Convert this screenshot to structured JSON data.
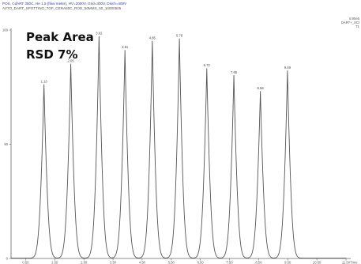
{
  "header": {
    "line1": "POS, CdART 350C, He 1.5 (flow meter), HV=2000V, Grid=300V, Disch=400V",
    "line2": "AVTO_DART_SPOTTING_TOF_CERAMIC_ROD_50MMS_50_10000505"
  },
  "right_info": {
    "line1": "8.90e5",
    "line2": "DART+_SCI",
    "line3": "T1"
  },
  "annotations": {
    "peak_area": "Peak Area",
    "rsd": "RSD 7%"
  },
  "chart_data": {
    "type": "line",
    "title": "",
    "xlabel": "",
    "ylabel": "",
    "xlim": [
      0.0,
      11.5
    ],
    "ylim": [
      0,
      100
    ],
    "x_ticks": [
      "0.50",
      "1.50",
      "2.50",
      "3.50",
      "4.50",
      "5.50",
      "6.50",
      "7.50",
      "8.50",
      "9.50",
      "10.50",
      "11.50"
    ],
    "y_ticks": [
      "0",
      "50",
      "100"
    ],
    "x_axis_end_label": "Time",
    "grid": false,
    "legend": "none",
    "line_color": "#555555",
    "peaks": [
      {
        "x": 1.13,
        "y": 76,
        "label": "1.13"
      },
      {
        "x": 2.05,
        "y": 85,
        "label": "2.05"
      },
      {
        "x": 3.02,
        "y": 97,
        "label": "3.02"
      },
      {
        "x": 3.91,
        "y": 91,
        "label": "3.91"
      },
      {
        "x": 4.85,
        "y": 95,
        "label": "4.85"
      },
      {
        "x": 5.78,
        "y": 96,
        "label": "5.78"
      },
      {
        "x": 6.72,
        "y": 83,
        "label": "6.72"
      },
      {
        "x": 7.65,
        "y": 80,
        "label": "7.65"
      },
      {
        "x": 8.56,
        "y": 73,
        "label": "8.56"
      },
      {
        "x": 9.49,
        "y": 82,
        "label": "9.49"
      }
    ]
  }
}
